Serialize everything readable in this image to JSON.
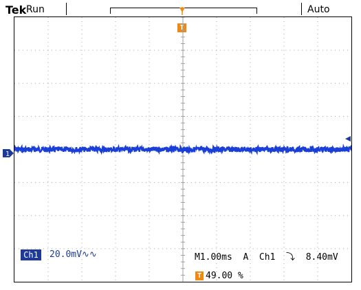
{
  "header": {
    "brand": "Tek",
    "acquisition_state": "Run",
    "trigger_mode": "Auto"
  },
  "markers": {
    "trigger_marker": "T",
    "channel_ground_marker": "1"
  },
  "readout": {
    "channel_badge": "Ch1",
    "channel_scale": "20.0mV∿∿",
    "timebase": "M1.00ms  A  Ch1  ⤵  8.40mV",
    "trigger_position_marker": "T",
    "trigger_position": "49.00 %"
  },
  "colors": {
    "trace": "#1a3fd6",
    "trigger": "#ee8a14",
    "channel": "#1d3a9a",
    "grid": "#9aa0a6"
  },
  "trace": {
    "position_divisions": 0.0,
    "noise_divisions": 0.08
  }
}
